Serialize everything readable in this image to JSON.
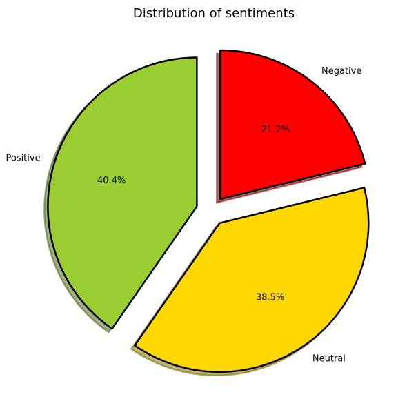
{
  "chart_data": {
    "type": "pie",
    "title": "Distribution of sentiments",
    "slices": [
      {
        "label": "Positive",
        "value": 40.4,
        "pct_label": "40.4%",
        "color": "#9acd32"
      },
      {
        "label": "Neutral",
        "value": 38.5,
        "pct_label": "38.5%",
        "color": "#ffd700"
      },
      {
        "label": "Negative",
        "value": 21.2,
        "pct_label": "21.2%",
        "color": "#ff0000"
      }
    ],
    "exploded": true,
    "shadow": true,
    "edge_color": "#000000"
  }
}
